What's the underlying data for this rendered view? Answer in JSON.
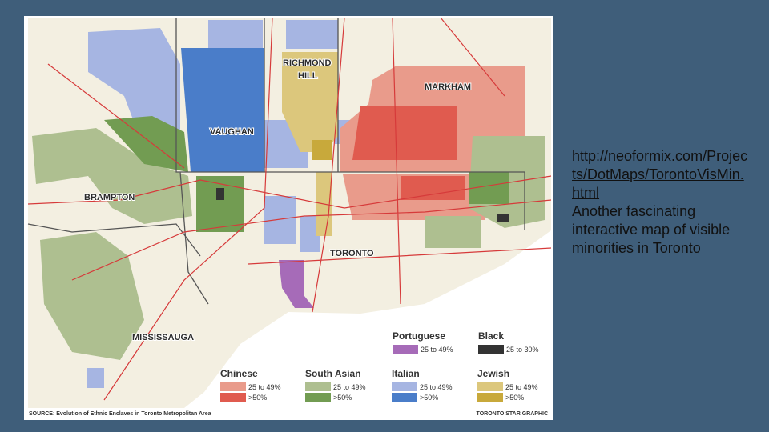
{
  "slide": {
    "map": {
      "labels": {
        "richmond_hill": [
          "RICHMOND",
          "HILL"
        ],
        "markham": "MARKHAM",
        "vaughan": "VAUGHAN",
        "brampton": "BRAMPTON",
        "toronto": "TORONTO",
        "mississauga": "MISSISSAUGA"
      },
      "legend": [
        {
          "group": "Portuguese",
          "items": [
            {
              "label": "25 to 49%",
              "color": "#a66bb8"
            }
          ]
        },
        {
          "group": "Black",
          "items": [
            {
              "label": "25 to 30%",
              "color": "#333333"
            }
          ]
        },
        {
          "group": "Chinese",
          "items": [
            {
              "label": "25 to 49%",
              "color": "#e99b8b"
            },
            {
              "label": ">50%",
              "color": "#e05b4f"
            }
          ]
        },
        {
          "group": "South Asian",
          "items": [
            {
              "label": "25 to 49%",
              "color": "#aebf90"
            },
            {
              "label": ">50%",
              "color": "#729c52"
            }
          ]
        },
        {
          "group": "Italian",
          "items": [
            {
              "label": "25 to 49%",
              "color": "#a6b5e2"
            },
            {
              "label": ">50%",
              "color": "#4a7dc9"
            }
          ]
        },
        {
          "group": "Jewish",
          "items": [
            {
              "label": "25 to 49%",
              "color": "#dcc77c"
            },
            {
              "label": ">50%",
              "color": "#c8a93b"
            }
          ]
        }
      ],
      "source": "SOURCE: Evolution of Ethnic Enclaves in Toronto Metropolitan Area",
      "credit": "TORONTO STAR GRAPHIC"
    },
    "link": "http://neoformix.com/Projects/DotMaps/TorontoVisMin.html",
    "description": "Another fascinating interactive map of visible minorities in Toronto"
  }
}
